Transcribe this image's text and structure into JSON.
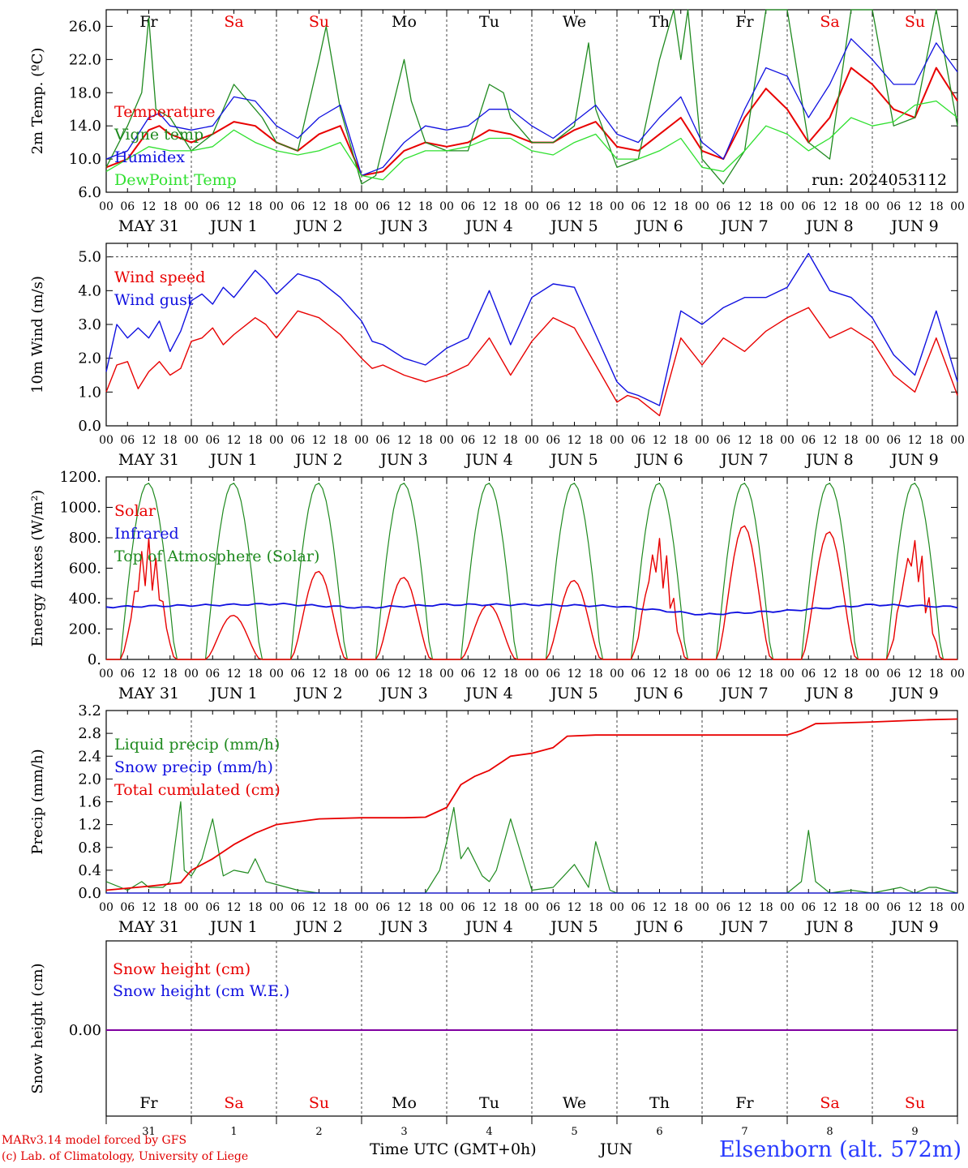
{
  "colors": {
    "red": "#e80000",
    "green": "#1f8a1f",
    "blue": "#1010e0",
    "lime": "#2fe02f",
    "purple": "#8000a0",
    "axis": "#000000",
    "grid": "#444444"
  },
  "days": {
    "weekday_labels": [
      "Fr",
      "Sa",
      "Su",
      "Mo",
      "Tu",
      "We",
      "Th",
      "Fr",
      "Sa",
      "Su"
    ],
    "weekday_colors": [
      "black",
      "red",
      "red",
      "black",
      "black",
      "black",
      "black",
      "black",
      "red",
      "red"
    ],
    "hour_ticks": [
      "00",
      "06",
      "12",
      "18"
    ],
    "final_tick": "00",
    "date_labels": [
      "MAY 31",
      "JUN  1",
      "JUN  2",
      "JUN  3",
      "JUN  4",
      "JUN  5",
      "JUN  6",
      "JUN  7",
      "JUN  8",
      "JUN  9"
    ],
    "bottom_day_numbers": [
      "31",
      "1",
      "2",
      "3",
      "4",
      "5",
      "6",
      "7",
      "8",
      "9"
    ]
  },
  "chart_data": [
    {
      "type": "line",
      "ylabel": "2m Temp. (ºC)",
      "ylim": [
        6.0,
        28.0
      ],
      "yticks": [
        "6.0",
        "10.0",
        "14.0",
        "18.0",
        "22.0",
        "26.0"
      ],
      "annotation": "run: 2024053112",
      "x_unit": "hours since MAY 31 00 UTC",
      "series": [
        {
          "name": "Temperature",
          "color": "red",
          "x": [
            0,
            6,
            12,
            15,
            18,
            24,
            30,
            36,
            42,
            48,
            54,
            60,
            66,
            72,
            78,
            84,
            90,
            96,
            102,
            108,
            114,
            120,
            126,
            132,
            138,
            144,
            150,
            156,
            162,
            168,
            174,
            180,
            186,
            192,
            198,
            204,
            210,
            216,
            222,
            228,
            234,
            240
          ],
          "y": [
            9,
            10,
            13.5,
            14,
            13,
            12,
            13,
            14.5,
            14,
            12,
            11,
            13,
            14,
            8,
            8.5,
            11,
            12,
            11.5,
            12,
            13.5,
            13,
            12,
            12,
            13.5,
            14.5,
            11.5,
            11,
            13,
            15,
            11,
            10,
            15,
            18.5,
            16,
            12,
            15,
            21,
            19,
            16,
            15,
            21,
            17
          ]
        },
        {
          "name": "Vigne temp",
          "color": "green",
          "x": [
            0,
            6,
            10,
            12,
            14,
            18,
            24,
            30,
            36,
            40,
            42,
            44,
            48,
            54,
            60,
            62,
            66,
            72,
            76,
            80,
            84,
            86,
            90,
            96,
            102,
            108,
            112,
            114,
            120,
            126,
            132,
            136,
            138,
            144,
            150,
            156,
            160,
            162,
            164,
            168,
            174,
            180,
            186,
            192,
            198,
            204,
            210,
            216,
            222,
            228,
            234,
            240
          ],
          "y": [
            9,
            14,
            18,
            27,
            16,
            15,
            11,
            13,
            19,
            17,
            16,
            15,
            12,
            11,
            22,
            26,
            16,
            7,
            8,
            15,
            22,
            17,
            12,
            11,
            11,
            19,
            18,
            15,
            12,
            12,
            14,
            24,
            16,
            9,
            10,
            22,
            29,
            22,
            28,
            10,
            7,
            11,
            29,
            30,
            12,
            10,
            30,
            29,
            14,
            15,
            30,
            14
          ]
        },
        {
          "name": "Humidex",
          "color": "blue",
          "x": [
            0,
            6,
            12,
            15,
            18,
            24,
            30,
            36,
            42,
            48,
            54,
            60,
            66,
            72,
            78,
            84,
            90,
            96,
            102,
            108,
            114,
            120,
            126,
            132,
            138,
            144,
            150,
            156,
            162,
            168,
            174,
            180,
            186,
            192,
            198,
            204,
            210,
            216,
            222,
            228,
            234,
            240
          ],
          "y": [
            10,
            11,
            15,
            15.5,
            14,
            13.5,
            14,
            17.5,
            17,
            14,
            12.5,
            15,
            16.5,
            8,
            9,
            12,
            14,
            13.5,
            14,
            16,
            16,
            14,
            12.5,
            14.5,
            16.5,
            13,
            12,
            15,
            17.5,
            12,
            10,
            16,
            21,
            20,
            15,
            19,
            24.5,
            22,
            19,
            19,
            24,
            20.5
          ]
        },
        {
          "name": "DewPoint Temp",
          "color": "lime",
          "x": [
            0,
            6,
            12,
            18,
            24,
            30,
            36,
            42,
            48,
            54,
            60,
            66,
            72,
            78,
            84,
            90,
            96,
            102,
            108,
            114,
            120,
            126,
            132,
            138,
            144,
            150,
            156,
            162,
            168,
            174,
            180,
            186,
            192,
            198,
            204,
            210,
            216,
            222,
            228,
            234,
            240
          ],
          "y": [
            8.5,
            10,
            11.5,
            11,
            11,
            11.5,
            13.5,
            12,
            11,
            10.5,
            11,
            12,
            8,
            7.5,
            10,
            11,
            11,
            11.5,
            12.5,
            12.5,
            11,
            10.5,
            12,
            13,
            10,
            10,
            11,
            12.5,
            9,
            8.5,
            11,
            14,
            13,
            11,
            12.5,
            15,
            14,
            14.5,
            16.5,
            17,
            15
          ]
        }
      ]
    },
    {
      "type": "line",
      "ylabel": "10m Wind (m/s)",
      "ylim": [
        0.0,
        5.4
      ],
      "yticks": [
        "0.0",
        "1.0",
        "2.0",
        "3.0",
        "4.0",
        "5.0"
      ],
      "reference_line": 5.0,
      "series": [
        {
          "name": "Wind speed",
          "color": "red",
          "x": [
            0,
            3,
            6,
            9,
            12,
            15,
            18,
            21,
            24,
            27,
            30,
            33,
            36,
            42,
            45,
            48,
            54,
            60,
            66,
            72,
            75,
            78,
            84,
            90,
            96,
            102,
            108,
            114,
            120,
            126,
            132,
            138,
            144,
            147,
            150,
            156,
            162,
            168,
            174,
            180,
            186,
            192,
            198,
            204,
            210,
            216,
            222,
            228,
            234,
            240
          ],
          "y": [
            1,
            1.8,
            1.9,
            1.1,
            1.6,
            1.9,
            1.5,
            1.7,
            2.5,
            2.6,
            2.9,
            2.4,
            2.7,
            3.2,
            3.0,
            2.6,
            3.4,
            3.2,
            2.7,
            2.0,
            1.7,
            1.8,
            1.5,
            1.3,
            1.5,
            1.8,
            2.6,
            1.5,
            2.5,
            3.2,
            2.9,
            1.8,
            0.7,
            0.9,
            0.8,
            0.3,
            2.6,
            1.8,
            2.6,
            2.2,
            2.8,
            3.2,
            3.5,
            2.6,
            2.9,
            2.5,
            1.5,
            1.0,
            2.6,
            0.9
          ]
        },
        {
          "name": "Wind gust",
          "color": "blue",
          "x": [
            0,
            3,
            6,
            9,
            12,
            15,
            18,
            21,
            24,
            27,
            30,
            33,
            36,
            42,
            45,
            48,
            54,
            60,
            66,
            72,
            75,
            78,
            84,
            90,
            96,
            102,
            108,
            114,
            120,
            126,
            132,
            138,
            144,
            147,
            150,
            156,
            162,
            168,
            174,
            180,
            186,
            192,
            198,
            204,
            210,
            216,
            222,
            228,
            234,
            240
          ],
          "y": [
            1.6,
            3.0,
            2.6,
            2.9,
            2.6,
            3.1,
            2.2,
            2.8,
            3.7,
            3.9,
            3.6,
            4.1,
            3.8,
            4.6,
            4.3,
            3.9,
            4.5,
            4.3,
            3.8,
            3.1,
            2.5,
            2.4,
            2.0,
            1.8,
            2.3,
            2.6,
            4.0,
            2.4,
            3.8,
            4.2,
            4.1,
            2.7,
            1.3,
            1.0,
            0.9,
            0.6,
            3.4,
            3.0,
            3.5,
            3.8,
            3.8,
            4.1,
            5.1,
            4.0,
            3.8,
            3.2,
            2.1,
            1.5,
            3.4,
            1.3
          ]
        }
      ]
    },
    {
      "type": "line",
      "ylabel": "Energy fluxes (W/m²)",
      "ylim": [
        0,
        1200
      ],
      "yticks": [
        "0.",
        "200.",
        "400.",
        "600.",
        "800.",
        "1000.",
        "1200."
      ],
      "series": [
        {
          "name": "Solar",
          "color": "red",
          "peaks": [
            800,
            290,
            580,
            540,
            360,
            520,
            810,
            880,
            840,
            810
          ]
        },
        {
          "name": "Infrared",
          "color": "blue",
          "x": [
            0,
            24,
            48,
            72,
            96,
            120,
            144,
            168,
            192,
            216,
            240
          ],
          "y": [
            345,
            355,
            365,
            340,
            360,
            360,
            350,
            295,
            320,
            360,
            345
          ]
        },
        {
          "name": "Top of Atmosphere (Solar)",
          "color": "green",
          "peaks": [
            1160,
            1160,
            1160,
            1160,
            1160,
            1160,
            1160,
            1160,
            1160,
            1160
          ]
        }
      ]
    },
    {
      "type": "line",
      "ylabel": "Precip (mm/h)",
      "ylim": [
        0.0,
        3.2
      ],
      "yticks": [
        "0.0",
        "0.4",
        "0.8",
        "1.2",
        "1.6",
        "2.0",
        "2.4",
        "2.8",
        "3.2"
      ],
      "series": [
        {
          "name": "Liquid precip (mm/h)",
          "color": "green",
          "x": [
            0,
            6,
            10,
            12,
            16,
            18,
            21,
            22,
            24,
            27,
            30,
            33,
            36,
            40,
            42,
            45,
            48,
            54,
            60,
            66,
            72,
            90,
            94,
            96,
            98,
            100,
            102,
            106,
            108,
            110,
            114,
            120,
            126,
            132,
            136,
            138,
            142,
            144,
            168,
            192,
            196,
            198,
            200,
            204,
            210,
            216,
            224,
            228,
            232,
            234,
            240
          ],
          "y": [
            0.2,
            0.05,
            0.2,
            0.1,
            0.1,
            0.2,
            1.6,
            0.4,
            0.3,
            0.6,
            1.3,
            0.3,
            0.4,
            0.35,
            0.6,
            0.2,
            0.15,
            0.05,
            0,
            0,
            0,
            0,
            0.4,
            0.9,
            1.5,
            0.6,
            0.8,
            0.3,
            0.2,
            0.4,
            1.3,
            0.05,
            0.1,
            0.5,
            0.1,
            0.9,
            0.05,
            0,
            0,
            0,
            0.2,
            1.1,
            0.2,
            0,
            0.05,
            0,
            0.1,
            0,
            0.1,
            0.1,
            0
          ]
        },
        {
          "name": "Snow precip (mm/h)",
          "color": "blue",
          "x": [
            0,
            240
          ],
          "y": [
            0,
            0
          ]
        },
        {
          "name": "Total cumulated (cm)",
          "color": "red",
          "x": [
            0,
            12,
            21,
            24,
            30,
            36,
            42,
            48,
            60,
            72,
            84,
            90,
            96,
            100,
            104,
            108,
            114,
            120,
            126,
            130,
            138,
            144,
            168,
            192,
            196,
            200,
            216,
            232,
            240
          ],
          "y": [
            0.05,
            0.12,
            0.18,
            0.4,
            0.6,
            0.85,
            1.05,
            1.2,
            1.3,
            1.32,
            1.32,
            1.33,
            1.5,
            1.9,
            2.05,
            2.15,
            2.4,
            2.45,
            2.55,
            2.75,
            2.77,
            2.77,
            2.77,
            2.77,
            2.85,
            2.97,
            3.0,
            3.04,
            3.05
          ]
        }
      ]
    },
    {
      "type": "line",
      "ylabel": "Snow height (cm)",
      "yticks": [
        "0.00"
      ],
      "series": [
        {
          "name": "Snow height (cm)",
          "color": "red",
          "x": [
            0,
            240
          ],
          "y": [
            0,
            0
          ]
        },
        {
          "name": "Snow height (cm W.E.)",
          "color": "blue",
          "x": [
            0,
            240
          ],
          "y": [
            0,
            0
          ]
        }
      ]
    }
  ],
  "footer": {
    "model_line": "MARv3.14 model forced by GFS",
    "credit_line": "(c) Lab. of Climatology, University of Liege",
    "time_axis_label": "Time UTC (GMT+0h)",
    "month_label": "JUN",
    "station": "Elsenborn (alt. 572m)"
  }
}
